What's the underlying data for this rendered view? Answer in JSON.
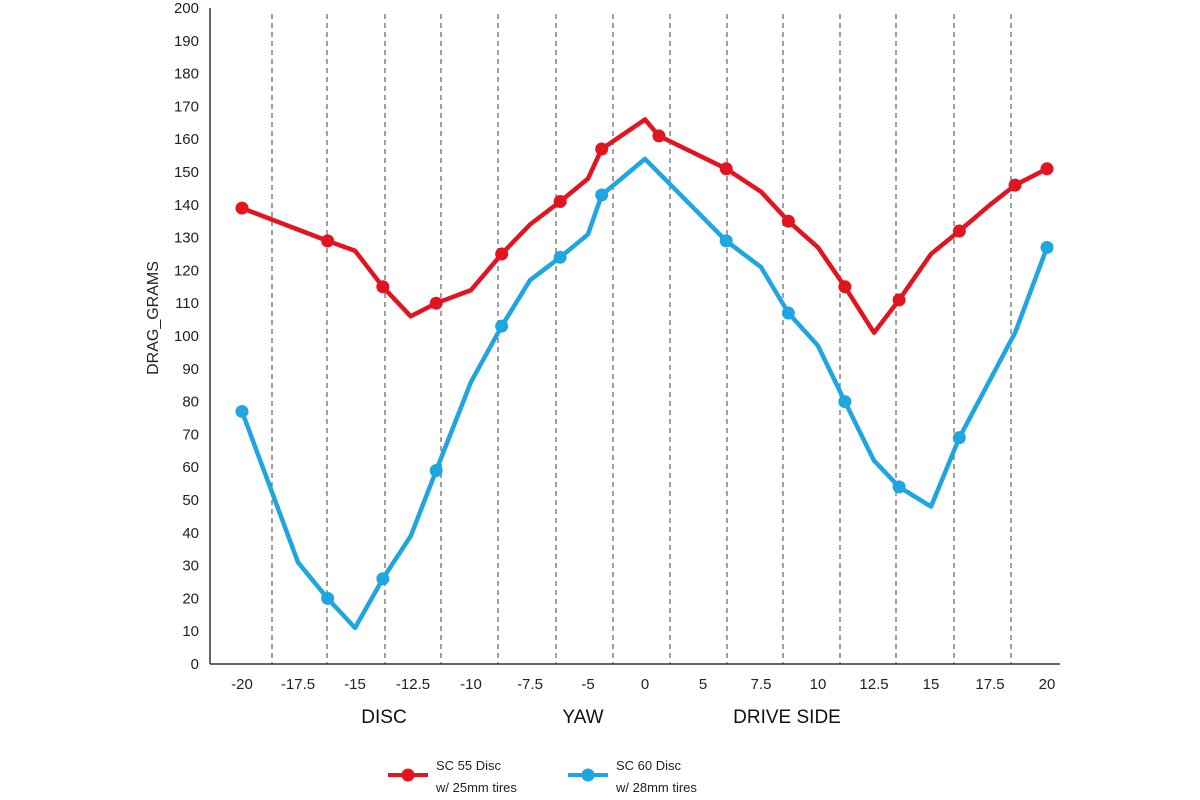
{
  "chart_data": {
    "type": "line",
    "ylabel": "DRAG_GRAMS",
    "ylim": [
      0,
      200
    ],
    "y_ticks": [
      0,
      10,
      20,
      30,
      40,
      50,
      60,
      70,
      80,
      90,
      100,
      110,
      120,
      130,
      140,
      150,
      160,
      170,
      180,
      190,
      200
    ],
    "x_ticks": [
      "-20",
      "-17.5",
      "-15",
      "-12.5",
      "-10",
      "-7.5",
      "-5",
      "0",
      "5",
      "7.5",
      "10",
      "12.5",
      "15",
      "17.5",
      "20"
    ],
    "x_region_labels": [
      "DISC",
      "YAW",
      "DRIVE SIDE"
    ],
    "series": [
      {
        "name": "SC 55 Disc w/ 25mm tires",
        "color": "#e2141f",
        "points": [
          {
            "x": "-20",
            "y": 139,
            "marker": true
          },
          {
            "x": "-16.2",
            "y": 129,
            "marker": true
          },
          {
            "x": "-15",
            "y": 126,
            "marker": false
          },
          {
            "x": "-13.8",
            "y": 115,
            "marker": true
          },
          {
            "x": "-12.6",
            "y": 106,
            "marker": false
          },
          {
            "x": "-11.5",
            "y": 110,
            "marker": true
          },
          {
            "x": "-10",
            "y": 114,
            "marker": false
          },
          {
            "x": "-8.7",
            "y": 125,
            "marker": true
          },
          {
            "x": "-7.5",
            "y": 134,
            "marker": false
          },
          {
            "x": "-6.2",
            "y": 141,
            "marker": true
          },
          {
            "x": "-5",
            "y": 148,
            "marker": false
          },
          {
            "x": "-3.8",
            "y": 157,
            "marker": true
          },
          {
            "x": "0",
            "y": 166,
            "marker": false
          },
          {
            "x": "1.2",
            "y": 161,
            "marker": true
          },
          {
            "x": "6",
            "y": 151,
            "marker": true
          },
          {
            "x": "7.5",
            "y": 144,
            "marker": false
          },
          {
            "x": "8.7",
            "y": 135,
            "marker": true
          },
          {
            "x": "10",
            "y": 127,
            "marker": false
          },
          {
            "x": "11.2",
            "y": 115,
            "marker": true
          },
          {
            "x": "12.5",
            "y": 101,
            "marker": false
          },
          {
            "x": "13.6",
            "y": 111,
            "marker": true
          },
          {
            "x": "15",
            "y": 125,
            "marker": false
          },
          {
            "x": "16.2",
            "y": 132,
            "marker": true
          },
          {
            "x": "17.5",
            "y": 140,
            "marker": false
          },
          {
            "x": "18.6",
            "y": 146,
            "marker": true
          },
          {
            "x": "20",
            "y": 151,
            "marker": true
          }
        ]
      },
      {
        "name": "SC 60 Disc w/ 28mm tires",
        "color": "#1fa5df",
        "points": [
          {
            "x": "-20",
            "y": 77,
            "marker": true
          },
          {
            "x": "-17.5",
            "y": 31,
            "marker": false
          },
          {
            "x": "-16.2",
            "y": 20,
            "marker": true
          },
          {
            "x": "-15",
            "y": 11,
            "marker": false
          },
          {
            "x": "-13.8",
            "y": 26,
            "marker": true
          },
          {
            "x": "-12.6",
            "y": 39,
            "marker": false
          },
          {
            "x": "-11.5",
            "y": 59,
            "marker": true
          },
          {
            "x": "-10",
            "y": 86,
            "marker": false
          },
          {
            "x": "-8.7",
            "y": 103,
            "marker": true
          },
          {
            "x": "-7.5",
            "y": 117,
            "marker": false
          },
          {
            "x": "-6.2",
            "y": 124,
            "marker": true
          },
          {
            "x": "-5",
            "y": 131,
            "marker": false
          },
          {
            "x": "-3.8",
            "y": 143,
            "marker": true
          },
          {
            "x": "0",
            "y": 154,
            "marker": false
          },
          {
            "x": "6",
            "y": 129,
            "marker": true
          },
          {
            "x": "7.5",
            "y": 121,
            "marker": false
          },
          {
            "x": "8.7",
            "y": 107,
            "marker": true
          },
          {
            "x": "10",
            "y": 97,
            "marker": false
          },
          {
            "x": "11.2",
            "y": 80,
            "marker": true
          },
          {
            "x": "12.5",
            "y": 62,
            "marker": false
          },
          {
            "x": "13.6",
            "y": 54,
            "marker": true
          },
          {
            "x": "15",
            "y": 48,
            "marker": false
          },
          {
            "x": "16.2",
            "y": 69,
            "marker": true
          },
          {
            "x": "18.6",
            "y": 101,
            "marker": false
          },
          {
            "x": "20",
            "y": 127,
            "marker": true
          }
        ]
      }
    ],
    "legend": {
      "placement": "bottom-center",
      "entries": [
        {
          "line1": "SC 55 Disc",
          "line2": "w/ 25mm tires",
          "color": "#e2141f"
        },
        {
          "line1": "SC 60 Disc",
          "line2": "w/ 28mm tires",
          "color": "#1fa5df"
        }
      ]
    },
    "grid": {
      "vertical_dashed": true,
      "horizontal": false
    }
  }
}
